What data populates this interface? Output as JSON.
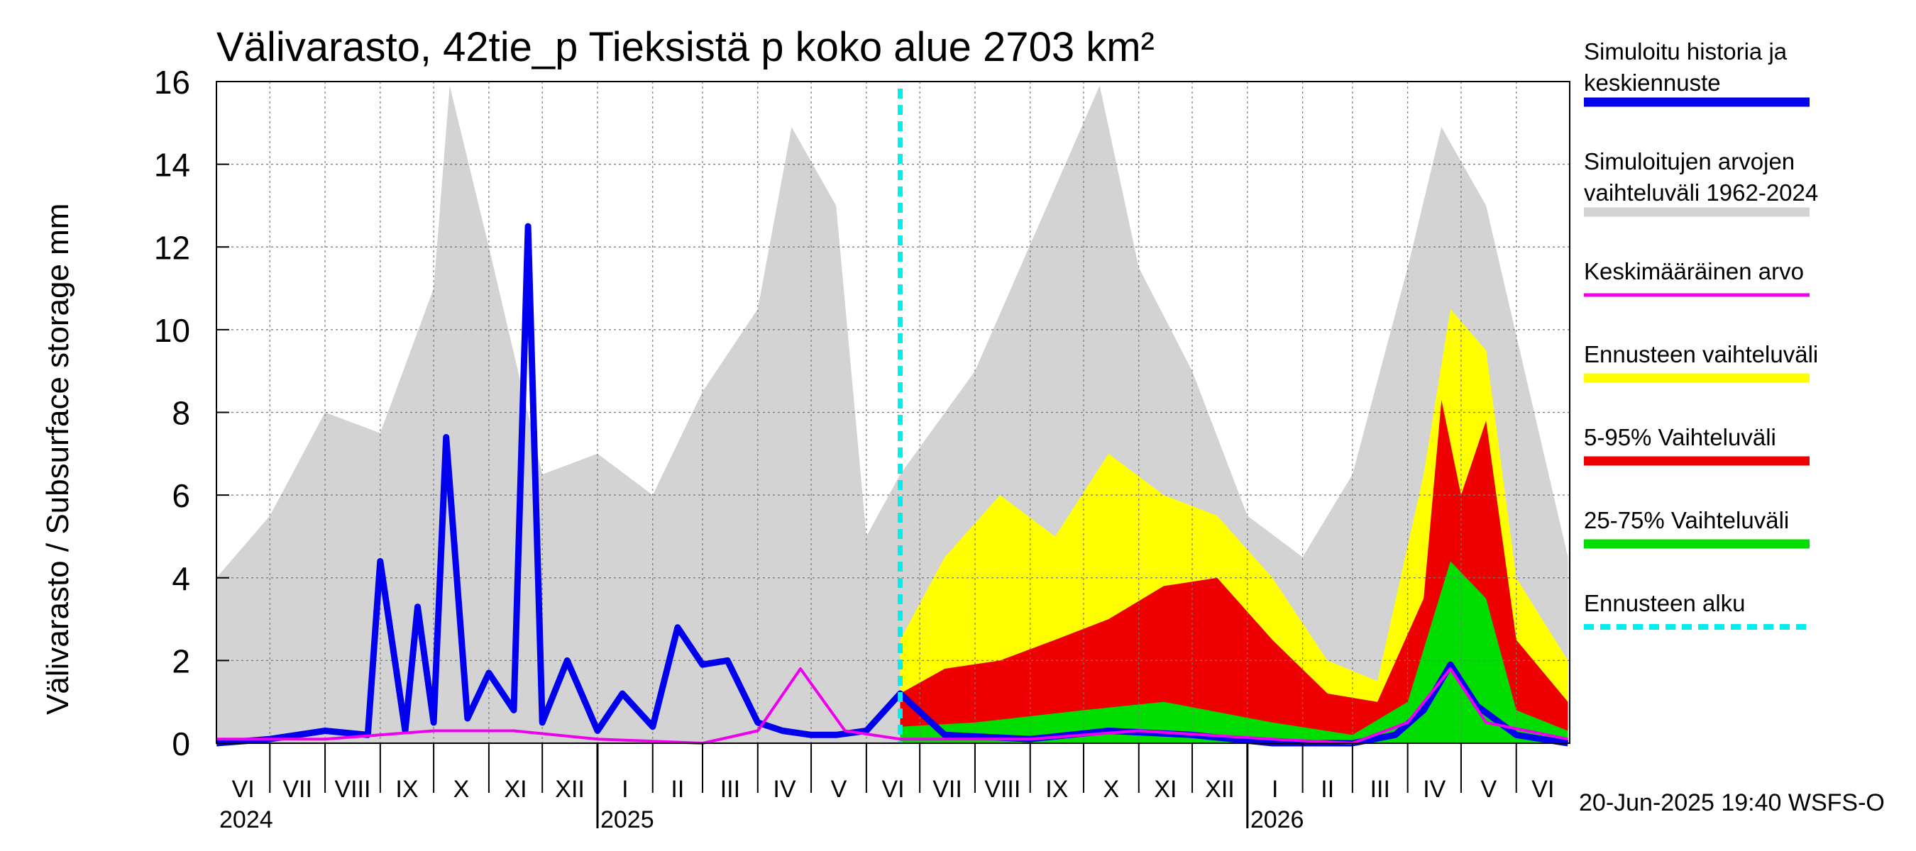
{
  "chart_data": {
    "type": "area",
    "title": "Välivarasto, 42tie_p Tieksistä p koko alue 2703 km²",
    "ylabel": "Välivarasto / Subsurface storage  mm",
    "ylim": [
      0,
      16
    ],
    "yticks": [
      "0",
      "2",
      "4",
      "6",
      "8",
      "10",
      "12",
      "14",
      "16"
    ],
    "grid": true,
    "legend_position": "right",
    "x_months": [
      "VI",
      "VII",
      "VIII",
      "IX",
      "X",
      "XI",
      "XII",
      "I",
      "II",
      "III",
      "IV",
      "V",
      "VI",
      "VII",
      "VIII",
      "IX",
      "X",
      "XI",
      "XII",
      "I",
      "II",
      "III",
      "IV",
      "V",
      "VI"
    ],
    "x_years": [
      "2024",
      "2025",
      "2026"
    ],
    "forecast_start": "2025-06-20",
    "footer": "20-Jun-2025 19:40 WSFS-O",
    "colors": {
      "history_range": "#d3d3d3",
      "simulated": "#0000ee",
      "mean": "#ee00ee",
      "forecast_range": "#ffff00",
      "range_5_95": "#ee0000",
      "range_25_75": "#00dd00",
      "forecast_start": "#00eeee"
    },
    "legend": [
      {
        "label": "Simuloitu historia ja",
        "label2": "keskiennuste",
        "color": "#0000ee",
        "style": "solid"
      },
      {
        "label": "Simuloitujen arvojen",
        "label2": "vaihteluväli 1962-2024",
        "color": "#d3d3d3",
        "style": "solid"
      },
      {
        "label": "Keskimääräinen arvo",
        "label2": "",
        "color": "#ee00ee",
        "style": "thin"
      },
      {
        "label": "Ennusteen vaihteluväli",
        "label2": "",
        "color": "#ffff00",
        "style": "solid"
      },
      {
        "label": "5-95% Vaihteluväli",
        "label2": "",
        "color": "#ee0000",
        "style": "solid"
      },
      {
        "label": "25-75% Vaihteluväli",
        "label2": "",
        "color": "#00dd00",
        "style": "solid"
      },
      {
        "label": "Ennusteen alku",
        "label2": "",
        "color": "#00eeee",
        "style": "dashed"
      }
    ],
    "series": [
      {
        "name": "Simuloitu historia ja keskiennuste",
        "kind": "line",
        "x": [
          "2024-06-01",
          "2024-07-01",
          "2024-08-01",
          "2024-08-25",
          "2024-09-01",
          "2024-09-15",
          "2024-09-22",
          "2024-10-01",
          "2024-10-08",
          "2024-10-20",
          "2024-11-01",
          "2024-11-15",
          "2024-11-23",
          "2024-12-01",
          "2024-12-15",
          "2025-01-01",
          "2025-01-15",
          "2025-02-01",
          "2025-02-15",
          "2025-03-01",
          "2025-03-15",
          "2025-04-01",
          "2025-04-15",
          "2025-05-01",
          "2025-05-15",
          "2025-06-01",
          "2025-06-20",
          "2025-07-15",
          "2025-09-01",
          "2025-10-15",
          "2025-12-01",
          "2026-01-15",
          "2026-03-01",
          "2026-03-25",
          "2026-04-10",
          "2026-04-25",
          "2026-05-10",
          "2026-06-01",
          "2026-06-30"
        ],
        "values": [
          0.0,
          0.1,
          0.3,
          0.2,
          4.4,
          0.3,
          3.3,
          0.5,
          7.4,
          0.6,
          1.7,
          0.8,
          12.5,
          0.5,
          2.0,
          0.3,
          1.2,
          0.4,
          2.8,
          1.9,
          2.0,
          0.5,
          0.3,
          0.2,
          0.2,
          0.3,
          1.2,
          0.2,
          0.1,
          0.3,
          0.2,
          0.0,
          0.0,
          0.2,
          0.8,
          1.9,
          0.9,
          0.2,
          0.0
        ]
      },
      {
        "name": "Keskimääräinen arvo",
        "kind": "line",
        "x": [
          "2024-06-01",
          "2024-08-01",
          "2024-10-01",
          "2024-11-15",
          "2025-01-01",
          "2025-03-01",
          "2025-04-01",
          "2025-04-25",
          "2025-05-20",
          "2025-06-20",
          "2025-09-01",
          "2025-11-01",
          "2026-01-15",
          "2026-03-01",
          "2026-04-01",
          "2026-04-25",
          "2026-05-15",
          "2026-06-30"
        ],
        "values": [
          0.1,
          0.1,
          0.3,
          0.3,
          0.1,
          0.0,
          0.3,
          1.8,
          0.3,
          0.1,
          0.1,
          0.3,
          0.1,
          0.0,
          0.5,
          1.8,
          0.5,
          0.1
        ]
      },
      {
        "name": "Simuloitujen arvojen vaihteluväli 1962-2024",
        "kind": "band_upper",
        "x": [
          "2024-06-01",
          "2024-07-01",
          "2024-08-01",
          "2024-09-01",
          "2024-10-01",
          "2024-10-10",
          "2024-11-01",
          "2024-12-01",
          "2025-01-01",
          "2025-02-01",
          "2025-03-01",
          "2025-04-01",
          "2025-04-20",
          "2025-05-15",
          "2025-06-01",
          "2025-06-20",
          "2025-08-01",
          "2025-10-10",
          "2025-11-01",
          "2025-12-01",
          "2026-01-01",
          "2026-02-01",
          "2026-03-01",
          "2026-04-01",
          "2026-04-20",
          "2026-05-15",
          "2026-06-30"
        ],
        "values": [
          4.0,
          5.5,
          8.0,
          7.5,
          11.0,
          15.9,
          12.0,
          6.5,
          7.0,
          6.0,
          8.5,
          10.5,
          14.9,
          13.0,
          5.0,
          6.5,
          9.0,
          15.9,
          11.5,
          9.0,
          5.5,
          4.5,
          6.5,
          11.5,
          14.9,
          13.0,
          4.5
        ]
      },
      {
        "name": "Ennusteen vaihteluväli",
        "kind": "band_upper",
        "x": [
          "2025-06-20",
          "2025-07-15",
          "2025-08-15",
          "2025-09-15",
          "2025-10-15",
          "2025-11-15",
          "2025-12-15",
          "2026-01-15",
          "2026-02-15",
          "2026-03-15",
          "2026-04-10",
          "2026-04-25",
          "2026-05-15",
          "2026-06-01",
          "2026-06-30"
        ],
        "values": [
          2.5,
          4.5,
          6.0,
          5.0,
          7.0,
          6.0,
          5.5,
          4.0,
          2.0,
          1.5,
          6.5,
          10.5,
          9.5,
          4.0,
          2.0
        ]
      },
      {
        "name": "5-95% Vaihteluväli",
        "kind": "band_upper",
        "x": [
          "2025-06-20",
          "2025-07-15",
          "2025-08-15",
          "2025-09-15",
          "2025-10-15",
          "2025-11-15",
          "2025-12-15",
          "2026-01-15",
          "2026-02-15",
          "2026-03-15",
          "2026-04-10",
          "2026-04-20",
          "2026-05-01",
          "2026-05-15",
          "2026-06-01",
          "2026-06-30"
        ],
        "values": [
          1.2,
          1.8,
          2.0,
          2.5,
          3.0,
          3.8,
          4.0,
          2.5,
          1.2,
          1.0,
          3.5,
          8.3,
          6.0,
          7.8,
          2.5,
          1.0
        ]
      },
      {
        "name": "25-75% Vaihteluväli",
        "kind": "band_upper",
        "x": [
          "2025-06-20",
          "2025-08-01",
          "2025-10-01",
          "2025-11-15",
          "2026-01-15",
          "2026-03-01",
          "2026-04-01",
          "2026-04-25",
          "2026-05-15",
          "2026-06-01",
          "2026-06-30"
        ],
        "values": [
          0.4,
          0.5,
          0.8,
          1.0,
          0.5,
          0.2,
          1.0,
          4.4,
          3.5,
          0.8,
          0.3
        ]
      }
    ]
  }
}
